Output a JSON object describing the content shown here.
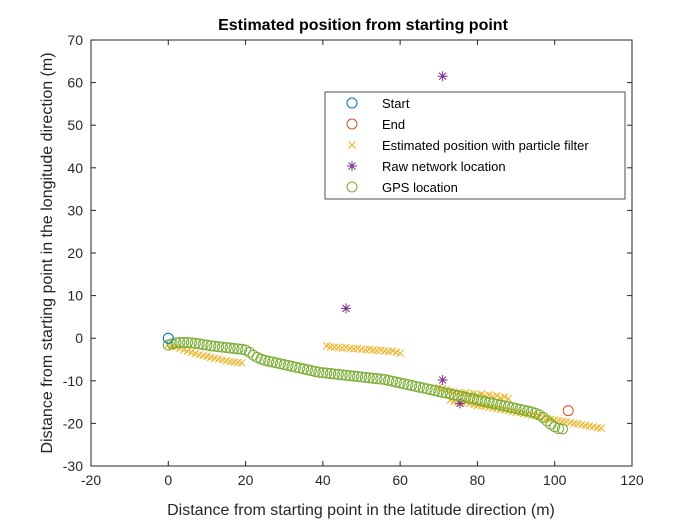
{
  "chart_data": {
    "type": "scatter",
    "title": "Estimated position from starting point",
    "xlabel": "Distance from starting point in the latitude direction (m)",
    "ylabel": "Distance from starting point in the longitude direction (m)",
    "xlim": [
      -20,
      120
    ],
    "ylim": [
      -30,
      70
    ],
    "xticks": [
      -20,
      0,
      20,
      40,
      60,
      80,
      100,
      120
    ],
    "yticks": [
      -30,
      -20,
      -10,
      0,
      10,
      20,
      30,
      40,
      50,
      60,
      70
    ],
    "grid": false,
    "legend_position": "top-right",
    "series": [
      {
        "name": "Start",
        "marker": "circle",
        "color": "#0072BD",
        "points": [
          [
            0,
            0
          ]
        ]
      },
      {
        "name": "End",
        "marker": "circle",
        "color": "#D95319",
        "points": [
          [
            103.5,
            -17
          ]
        ]
      },
      {
        "name": "Estimated position with particle filter",
        "marker": "x",
        "color": "#EDB120",
        "points": [
          [
            0,
            -1.5
          ],
          [
            1,
            -1.8
          ],
          [
            2,
            -2.1
          ],
          [
            3,
            -2.4
          ],
          [
            4,
            -2.7
          ],
          [
            5,
            -3.0
          ],
          [
            6,
            -3.3
          ],
          [
            7,
            -3.6
          ],
          [
            8,
            -3.9
          ],
          [
            9,
            -4.1
          ],
          [
            10,
            -4.3
          ],
          [
            11,
            -4.5
          ],
          [
            12,
            -4.7
          ],
          [
            13,
            -4.9
          ],
          [
            14,
            -5.1
          ],
          [
            15,
            -5.3
          ],
          [
            16,
            -5.5
          ],
          [
            17,
            -5.6
          ],
          [
            18,
            -5.7
          ],
          [
            19,
            -5.8
          ],
          [
            41,
            -1.8
          ],
          [
            42,
            -2.0
          ],
          [
            43,
            -2.1
          ],
          [
            44,
            -2.2
          ],
          [
            45,
            -2.3
          ],
          [
            46,
            -2.2
          ],
          [
            47,
            -2.4
          ],
          [
            48,
            -2.5
          ],
          [
            49,
            -2.4
          ],
          [
            50,
            -2.6
          ],
          [
            51,
            -2.7
          ],
          [
            52,
            -2.6
          ],
          [
            53,
            -2.8
          ],
          [
            54,
            -2.9
          ],
          [
            55,
            -2.8
          ],
          [
            56,
            -3.0
          ],
          [
            57,
            -3.1
          ],
          [
            58,
            -3.0
          ],
          [
            59,
            -3.3
          ],
          [
            60,
            -3.5
          ],
          [
            70,
            -11.5
          ],
          [
            71,
            -11.8
          ],
          [
            72,
            -12.1
          ],
          [
            73,
            -12.4
          ],
          [
            74,
            -12.6
          ],
          [
            75,
            -12.8
          ],
          [
            76,
            -13.0
          ],
          [
            77,
            -12.8
          ],
          [
            78,
            -13.2
          ],
          [
            79,
            -13.0
          ],
          [
            80,
            -13.4
          ],
          [
            81,
            -13.1
          ],
          [
            82,
            -13.5
          ],
          [
            83,
            -13.3
          ],
          [
            84,
            -13.7
          ],
          [
            85,
            -13.5
          ],
          [
            86,
            -14.0
          ],
          [
            87,
            -13.8
          ],
          [
            88,
            -14.2
          ],
          [
            73,
            -14.5
          ],
          [
            74,
            -14.8
          ],
          [
            75,
            -15.0
          ],
          [
            76,
            -15.2
          ],
          [
            77,
            -15.0
          ],
          [
            78,
            -15.4
          ],
          [
            79,
            -15.6
          ],
          [
            80,
            -15.8
          ],
          [
            81,
            -15.9
          ],
          [
            82,
            -16.0
          ],
          [
            83,
            -16.2
          ],
          [
            84,
            -16.4
          ],
          [
            85,
            -16.5
          ],
          [
            86,
            -16.7
          ],
          [
            87,
            -16.8
          ],
          [
            88,
            -17.0
          ],
          [
            89,
            -17.2
          ],
          [
            90,
            -17.4
          ],
          [
            91,
            -17.5
          ],
          [
            92,
            -17.7
          ],
          [
            93,
            -17.9
          ],
          [
            94,
            -18.1
          ],
          [
            95,
            -18.2
          ],
          [
            96,
            -18.4
          ],
          [
            97,
            -18.6
          ],
          [
            98,
            -18.8
          ],
          [
            99,
            -19.0
          ],
          [
            100,
            -19.2
          ],
          [
            101,
            -19.3
          ],
          [
            102,
            -19.5
          ],
          [
            103,
            -19.6
          ],
          [
            104,
            -19.8
          ],
          [
            105,
            -20.0
          ],
          [
            106,
            -20.1
          ],
          [
            107,
            -20.3
          ],
          [
            108,
            -20.5
          ],
          [
            109,
            -20.6
          ],
          [
            110,
            -20.8
          ],
          [
            111,
            -21.0
          ],
          [
            112,
            -21.1
          ]
        ]
      },
      {
        "name": "Raw network location",
        "marker": "asterisk",
        "color": "#7E2F8E",
        "points": [
          [
            71,
            61.5
          ],
          [
            46,
            7
          ],
          [
            71,
            -9.8
          ],
          [
            75.5,
            -15.3
          ]
        ]
      },
      {
        "name": "GPS location",
        "marker": "circle",
        "color": "#77AC30",
        "points": [
          [
            0,
            -1.6
          ],
          [
            1,
            -1.3
          ],
          [
            2,
            -1.1
          ],
          [
            3,
            -1.0
          ],
          [
            4,
            -1.0
          ],
          [
            5,
            -1.0
          ],
          [
            6,
            -1.1
          ],
          [
            7,
            -1.2
          ],
          [
            8,
            -1.3
          ],
          [
            9,
            -1.5
          ],
          [
            10,
            -1.6
          ],
          [
            11,
            -1.8
          ],
          [
            12,
            -1.9
          ],
          [
            13,
            -2.0
          ],
          [
            14,
            -2.1
          ],
          [
            15,
            -2.2
          ],
          [
            16,
            -2.3
          ],
          [
            17,
            -2.4
          ],
          [
            18,
            -2.5
          ],
          [
            19,
            -2.6
          ],
          [
            20,
            -2.8
          ],
          [
            21,
            -3.3
          ],
          [
            22,
            -4.0
          ],
          [
            23,
            -4.5
          ],
          [
            24,
            -4.9
          ],
          [
            25,
            -5.2
          ],
          [
            26,
            -5.4
          ],
          [
            27,
            -5.6
          ],
          [
            28,
            -5.8
          ],
          [
            29,
            -6.0
          ],
          [
            30,
            -6.2
          ],
          [
            31,
            -6.4
          ],
          [
            32,
            -6.6
          ],
          [
            33,
            -6.8
          ],
          [
            34,
            -7.0
          ],
          [
            35,
            -7.2
          ],
          [
            36,
            -7.4
          ],
          [
            37,
            -7.6
          ],
          [
            38,
            -7.8
          ],
          [
            39,
            -8.0
          ],
          [
            40,
            -8.1
          ],
          [
            41,
            -8.2
          ],
          [
            42,
            -8.3
          ],
          [
            43,
            -8.4
          ],
          [
            44,
            -8.5
          ],
          [
            45,
            -8.6
          ],
          [
            46,
            -8.7
          ],
          [
            47,
            -8.8
          ],
          [
            48,
            -8.9
          ],
          [
            49,
            -9.0
          ],
          [
            50,
            -9.1
          ],
          [
            51,
            -9.2
          ],
          [
            52,
            -9.3
          ],
          [
            53,
            -9.4
          ],
          [
            54,
            -9.5
          ],
          [
            55,
            -9.6
          ],
          [
            56,
            -9.7
          ],
          [
            57,
            -9.9
          ],
          [
            58,
            -10.1
          ],
          [
            59,
            -10.3
          ],
          [
            60,
            -10.5
          ],
          [
            61,
            -10.7
          ],
          [
            62,
            -10.9
          ],
          [
            63,
            -11.1
          ],
          [
            64,
            -11.3
          ],
          [
            65,
            -11.5
          ],
          [
            66,
            -11.7
          ],
          [
            67,
            -11.9
          ],
          [
            68,
            -12.1
          ],
          [
            69,
            -12.3
          ],
          [
            70,
            -12.5
          ],
          [
            71,
            -12.7
          ],
          [
            72,
            -12.9
          ],
          [
            73,
            -13.1
          ],
          [
            74,
            -13.3
          ],
          [
            75,
            -13.5
          ],
          [
            76,
            -13.7
          ],
          [
            77,
            -13.9
          ],
          [
            78,
            -14.1
          ],
          [
            79,
            -14.3
          ],
          [
            80,
            -14.5
          ],
          [
            81,
            -14.7
          ],
          [
            82,
            -14.9
          ],
          [
            83,
            -15.1
          ],
          [
            84,
            -15.3
          ],
          [
            85,
            -15.5
          ],
          [
            86,
            -15.7
          ],
          [
            87,
            -15.9
          ],
          [
            88,
            -16.1
          ],
          [
            89,
            -16.3
          ],
          [
            90,
            -16.5
          ],
          [
            91,
            -16.7
          ],
          [
            92,
            -16.9
          ],
          [
            93,
            -17.1
          ],
          [
            94,
            -17.3
          ],
          [
            95,
            -17.6
          ],
          [
            96,
            -18.0
          ],
          [
            97,
            -18.6
          ],
          [
            98,
            -19.4
          ],
          [
            99,
            -20.2
          ],
          [
            100,
            -20.8
          ],
          [
            101,
            -21.2
          ],
          [
            102,
            -21.3
          ]
        ]
      }
    ]
  }
}
